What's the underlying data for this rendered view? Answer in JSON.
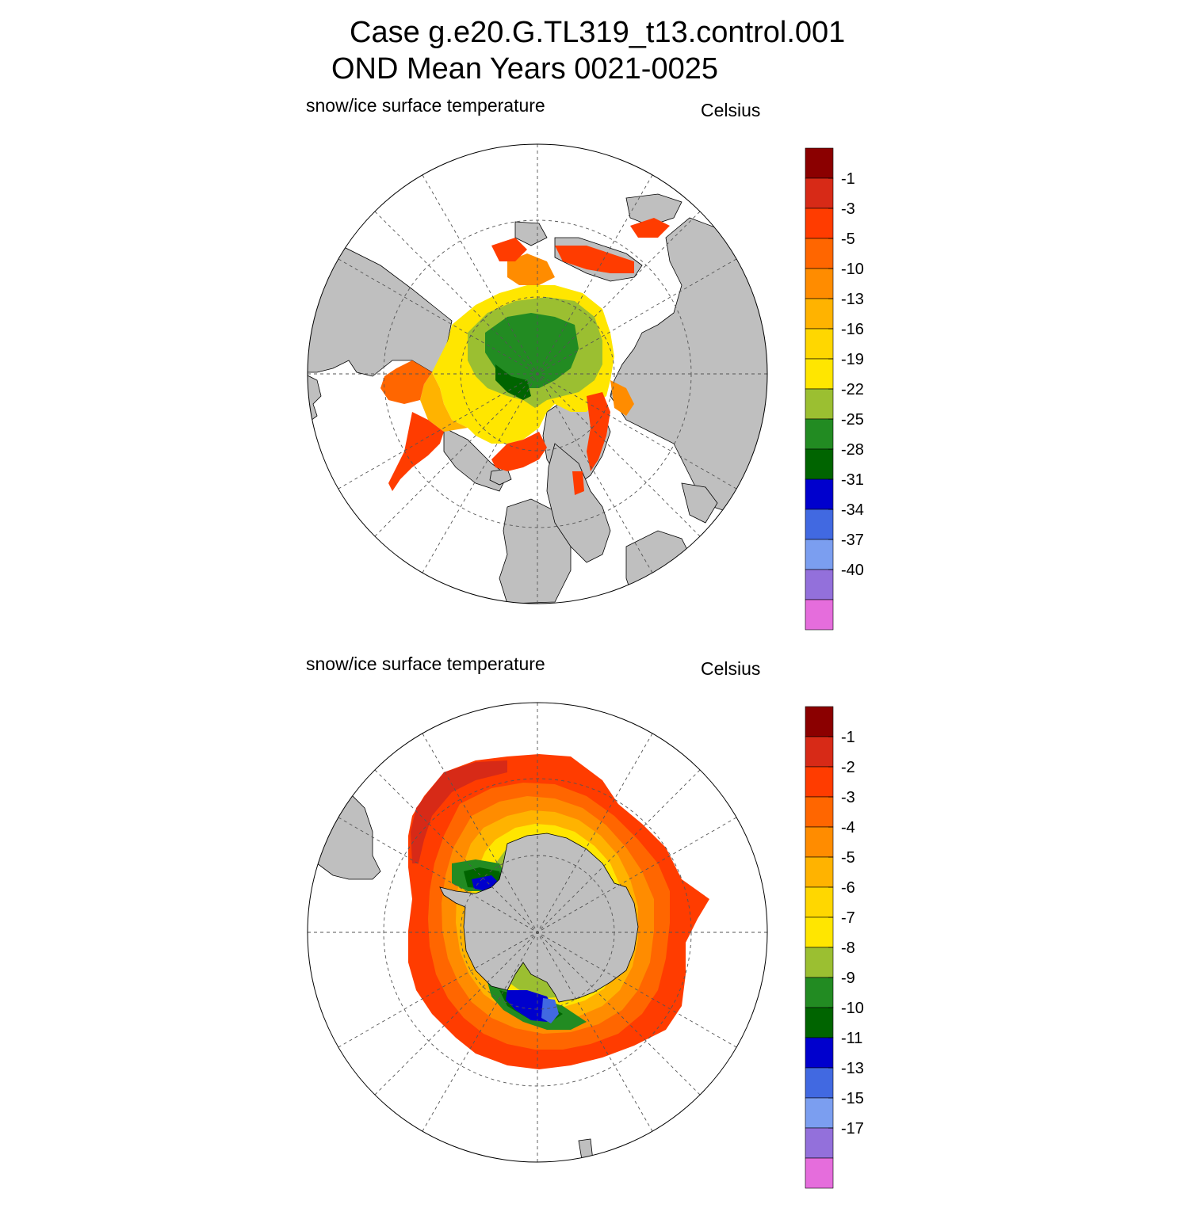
{
  "title": {
    "line1": "Case g.e20.G.TL319_t13.control.001",
    "line2": "OND Mean   Years 0021-0025"
  },
  "panels": [
    {
      "id": "north",
      "hemisphere": "Arctic",
      "variable_label": "snow/ice surface temperature",
      "units_label": "Celsius",
      "colorbar": {
        "tick_labels": [
          "-1",
          "-3",
          "-5",
          "-10",
          "-13",
          "-16",
          "-19",
          "-22",
          "-25",
          "-28",
          "-31",
          "-34",
          "-37",
          "-40"
        ],
        "colors": [
          "#8b0000",
          "#d72a17",
          "#ff3c00",
          "#ff6600",
          "#ff8c00",
          "#ffb300",
          "#ffd700",
          "#ffe600",
          "#9bbf31",
          "#228b22",
          "#006400",
          "#0000cd",
          "#4169e1",
          "#7b9ef0",
          "#9370db",
          "#e56ddc"
        ]
      }
    },
    {
      "id": "south",
      "hemisphere": "Antarctic",
      "variable_label": "snow/ice surface temperature",
      "units_label": "Celsius",
      "colorbar": {
        "tick_labels": [
          "-1",
          "-2",
          "-3",
          "-4",
          "-5",
          "-6",
          "-7",
          "-8",
          "-9",
          "-10",
          "-11",
          "-13",
          "-15",
          "-17"
        ],
        "colors": [
          "#8b0000",
          "#d72a17",
          "#ff3c00",
          "#ff6600",
          "#ff8c00",
          "#ffb300",
          "#ffd700",
          "#ffe600",
          "#9bbf31",
          "#228b22",
          "#006400",
          "#0000cd",
          "#4169e1",
          "#7b9ef0",
          "#9370db",
          "#e56ddc"
        ]
      }
    }
  ],
  "colors": {
    "land": "#bfbfbf",
    "ocean": "#ffffff",
    "grid": "#555555"
  }
}
